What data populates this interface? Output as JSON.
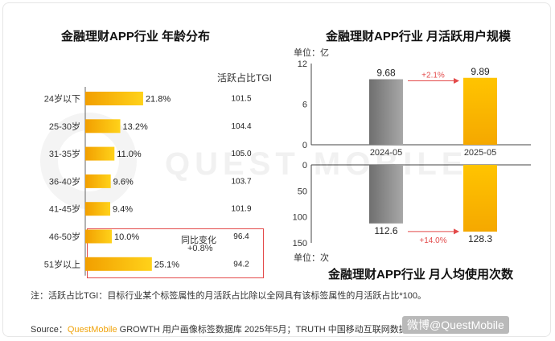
{
  "left_title": "金融理财APP行业 年龄分布",
  "right_top_title": "金融理财APP行业 月活跃用户规模",
  "right_bottom_title": "金融理财APP行业 月人均使用次数",
  "tgi_header": "活跃占比TGI",
  "yoy_label_line1": "同比变化",
  "yoy_label_line2": "+0.8%",
  "unit_top": "单位：亿",
  "unit_bottom": "单位：次",
  "watermark": "QUEST MOBILE",
  "footnote": "注：活跃占比TGI：目标行业某个标签属性的月活跃占比除以全网具有该标签属性的月活跃占比*100。",
  "source_prefix": "Source：",
  "source_brand": "QuestMobile",
  "source_rest": " GROWTH 用户画像标签数据库 2025年5月；TRUTH 中国移动互联网数据库 2025年5月",
  "credit": "微博@QuestMobile",
  "colors": {
    "bar_gold": "#f7b800",
    "bar_gray": "#8c8c8c",
    "red": "#e34a4a",
    "axis": "#444444"
  },
  "chart_data": [
    {
      "type": "bar",
      "orientation": "horizontal",
      "title": "金融理财APP行业 年龄分布",
      "categories": [
        "24岁以下",
        "25-30岁",
        "31-35岁",
        "36-40岁",
        "41-45岁",
        "46-50岁",
        "51岁以上"
      ],
      "values": [
        21.8,
        13.2,
        11.0,
        9.6,
        9.4,
        10.0,
        25.1
      ],
      "value_labels": [
        "21.8%",
        "13.2%",
        "11.0%",
        "9.6%",
        "9.4%",
        "10.0%",
        "25.1%"
      ],
      "unit": "%",
      "tgi": [
        101.5,
        104.4,
        105.0,
        103.7,
        101.9,
        96.4,
        94.2
      ],
      "tgi_labels": [
        "101.5",
        "104.4",
        "105.0",
        "103.7",
        "101.9",
        "96.4",
        "94.2"
      ],
      "highlight": {
        "categories": [
          "46-50岁",
          "51岁以上"
        ],
        "text": [
          "同比变化",
          "+0.8%"
        ]
      }
    },
    {
      "type": "bar",
      "title": "金融理财APP行业 月活跃用户规模",
      "categories": [
        "2024-05",
        "2025-05"
      ],
      "values": [
        9.68,
        9.89
      ],
      "value_labels": [
        "9.68",
        "9.89"
      ],
      "ylim": [
        0,
        12
      ],
      "yticks": [
        0,
        6,
        12
      ],
      "unit": "单位：亿",
      "growth_label": "+2.1%"
    },
    {
      "type": "bar",
      "title": "金融理财APP行业 月人均使用次数",
      "categories": [
        "2024-05",
        "2025-05"
      ],
      "values": [
        112.6,
        128.3
      ],
      "value_labels": [
        "112.6",
        "128.3"
      ],
      "ylim": [
        0,
        150
      ],
      "yticks": [
        0,
        50,
        100,
        150
      ],
      "axis_inverted": true,
      "unit": "单位：次",
      "growth_label": "+14.0%"
    }
  ]
}
